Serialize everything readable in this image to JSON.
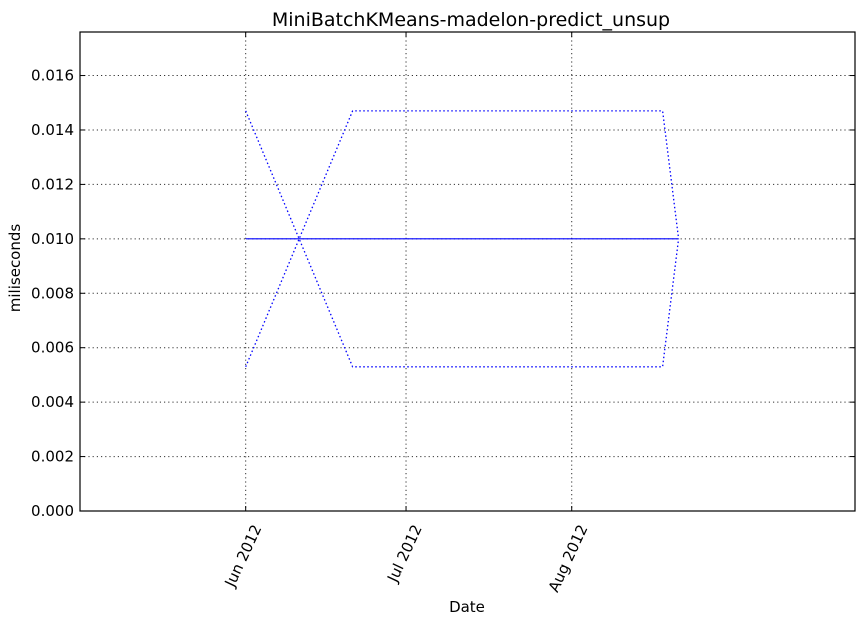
{
  "chart_data": {
    "type": "line",
    "title": "MiniBatchKMeans-madelon-predict_unsup",
    "xlabel": "Date",
    "ylabel": "miliseconds",
    "x_axis": {
      "range": [
        "2012-05-01",
        "2012-09-23"
      ],
      "ticks": [
        {
          "date": "2012-06-01",
          "label": "Jun 2012"
        },
        {
          "date": "2012-07-01",
          "label": "Jul 2012"
        },
        {
          "date": "2012-08-01",
          "label": "Aug 2012"
        }
      ]
    },
    "y_axis": {
      "range": [
        0,
        0.0176
      ],
      "ticks": [
        0.0,
        0.002,
        0.004,
        0.006,
        0.008,
        0.01,
        0.012,
        0.014,
        0.016
      ],
      "tick_labels": [
        "0.000",
        "0.002",
        "0.004",
        "0.006",
        "0.008",
        "0.010",
        "0.012",
        "0.014",
        "0.016"
      ]
    },
    "grid": true,
    "series": [
      {
        "role": "mean",
        "style": "solid",
        "color": "#0000ff",
        "points": [
          {
            "x": "2012-06-01",
            "y": 0.01
          },
          {
            "x": "2012-08-21",
            "y": 0.01
          }
        ]
      },
      {
        "role": "upper bound",
        "style": "dotted",
        "color": "#0000ff",
        "points": [
          {
            "x": "2012-06-01",
            "y": 0.0147
          },
          {
            "x": "2012-06-21",
            "y": 0.0053
          },
          {
            "x": "2012-08-18",
            "y": 0.0053
          },
          {
            "x": "2012-08-21",
            "y": 0.01
          }
        ]
      },
      {
        "role": "lower bound",
        "style": "dotted",
        "color": "#0000ff",
        "points": [
          {
            "x": "2012-06-01",
            "y": 0.0053
          },
          {
            "x": "2012-06-21",
            "y": 0.0147
          },
          {
            "x": "2012-08-18",
            "y": 0.0147
          },
          {
            "x": "2012-08-21",
            "y": 0.01
          }
        ]
      }
    ]
  }
}
